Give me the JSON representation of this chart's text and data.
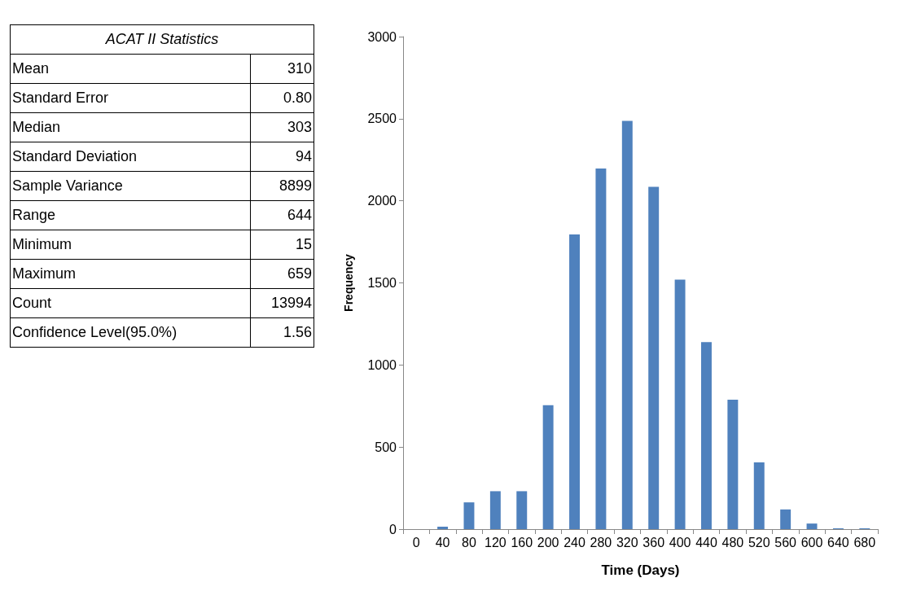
{
  "chart_data": [
    {
      "type": "other",
      "title": "ACAT II Statistics",
      "categories": [
        "Mean",
        "Standard Error",
        "Median",
        "Standard Deviation",
        "Sample Variance",
        "Range",
        "Minimum",
        "Maximum",
        "Count",
        "Confidence Level(95.0%)"
      ],
      "value_labels": [
        "310",
        "0.80",
        "303",
        "94",
        "8899",
        "644",
        "15",
        "659",
        "13994",
        "1.56"
      ]
    },
    {
      "type": "bar",
      "xlabel": "Time (Days)",
      "ylabel": "Frequency",
      "categories": [
        "0",
        "40",
        "80",
        "120",
        "160",
        "200",
        "240",
        "280",
        "320",
        "360",
        "400",
        "440",
        "480",
        "520",
        "560",
        "600",
        "640",
        "680"
      ],
      "values": [
        0,
        15,
        163,
        231,
        231,
        755,
        1795,
        2197,
        2487,
        2085,
        1520,
        1139,
        788,
        407,
        120,
        34,
        5,
        5
      ],
      "color": "#4f81bd",
      "ylim": [
        0,
        3000
      ],
      "yticks": [
        0,
        500,
        1000,
        1500,
        2000,
        2500,
        3000
      ],
      "grid": false
    }
  ]
}
